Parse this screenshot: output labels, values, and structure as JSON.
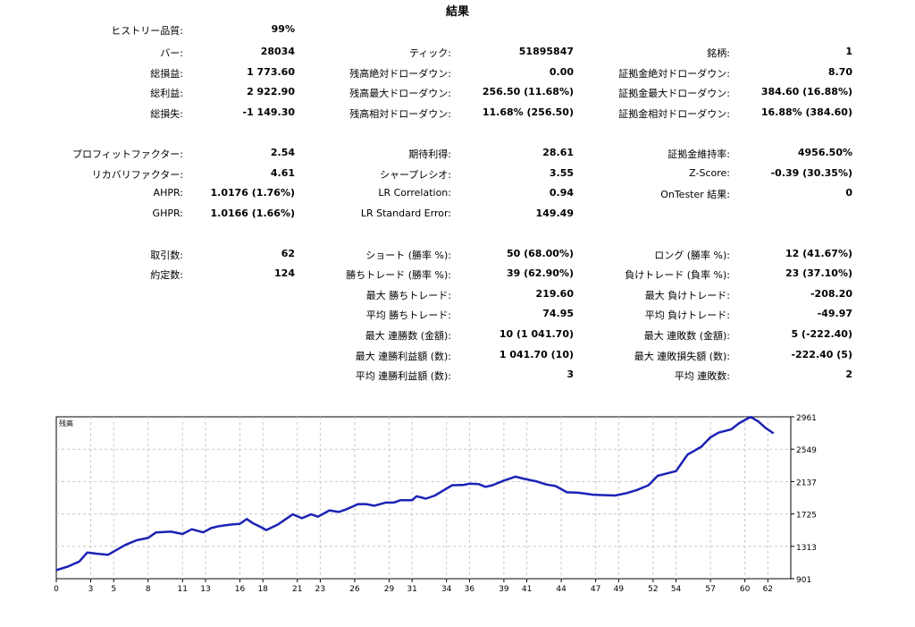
{
  "title": "結果",
  "rows": [
    {
      "cells": [
        {
          "label": "ヒストリー品質:",
          "value": "99%"
        },
        null,
        null
      ]
    },
    {
      "cells": [
        {
          "label": "バー:",
          "value": "28034"
        },
        {
          "label": "ティック:",
          "value": "51895847"
        },
        {
          "label": "銘柄:",
          "value": "1"
        }
      ]
    },
    {
      "cells": [
        {
          "label": "総損益:",
          "value": "1 773.60"
        },
        {
          "label": "残高絶対ドローダウン:",
          "value": "0.00"
        },
        {
          "label": "証拠金絶対ドローダウン:",
          "value": "8.70"
        }
      ]
    },
    {
      "cells": [
        {
          "label": "総利益:",
          "value": "2 922.90"
        },
        {
          "label": "残高最大ドローダウン:",
          "value": "256.50 (11.68%)"
        },
        {
          "label": "証拠金最大ドローダウン:",
          "value": "384.60 (16.88%)"
        }
      ]
    },
    {
      "cells": [
        {
          "label": "総損失:",
          "value": "-1 149.30"
        },
        {
          "label": "残高相対ドローダウン:",
          "value": "11.68% (256.50)"
        },
        {
          "label": "証拠金相対ドローダウン:",
          "value": "16.88% (384.60)"
        }
      ]
    },
    {
      "cells": [
        {
          "label": "プロフィットファクター:",
          "value": "2.54"
        },
        {
          "label": "期待利得:",
          "value": "28.61"
        },
        {
          "label": "証拠金維持率:",
          "value": "4956.50%"
        }
      ]
    },
    {
      "cells": [
        {
          "label": "リカバリファクター:",
          "value": "4.61"
        },
        {
          "label": "シャープレシオ:",
          "value": "3.55"
        },
        {
          "label": "Z-Score:",
          "value": "-0.39 (30.35%)"
        }
      ]
    },
    {
      "cells": [
        {
          "label": "AHPR:",
          "value": "1.0176 (1.76%)"
        },
        {
          "label": "LR Correlation:",
          "value": "0.94"
        },
        {
          "label": "OnTester 結果:",
          "value": "0"
        }
      ]
    },
    {
      "cells": [
        {
          "label": "GHPR:",
          "value": "1.0166 (1.66%)"
        },
        {
          "label": "LR Standard Error:",
          "value": "149.49"
        },
        null
      ]
    },
    {
      "cells": [
        {
          "label": "取引数:",
          "value": "62"
        },
        {
          "label": "ショート (勝率 %):",
          "value": "50 (68.00%)"
        },
        {
          "label": "ロング (勝率 %):",
          "value": "12 (41.67%)"
        }
      ]
    },
    {
      "cells": [
        {
          "label": "約定数:",
          "value": "124"
        },
        {
          "label": "勝ちトレード (勝率 %):",
          "value": "39 (62.90%)"
        },
        {
          "label": "負けトレード (負率 %):",
          "value": "23 (37.10%)"
        }
      ]
    },
    {
      "cells": [
        null,
        {
          "label": "最大 勝ちトレード:",
          "value": "219.60"
        },
        {
          "label": "最大 負けトレード:",
          "value": "-208.20"
        }
      ]
    },
    {
      "cells": [
        null,
        {
          "label": "平均 勝ちトレード:",
          "value": "74.95"
        },
        {
          "label": "平均 負けトレード:",
          "value": "-49.97"
        }
      ]
    },
    {
      "cells": [
        null,
        {
          "label": "最大 連勝数 (金額):",
          "value": "10 (1 041.70)"
        },
        {
          "label": "最大 連敗数 (金額):",
          "value": "5 (-222.40)"
        }
      ]
    },
    {
      "cells": [
        null,
        {
          "label": "最大 連勝利益額 (数):",
          "value": "1 041.70 (10)"
        },
        {
          "label": "最大 連敗損失額 (数):",
          "value": "-222.40 (5)"
        }
      ]
    },
    {
      "cells": [
        null,
        {
          "label": "平均 連勝利益額 (数):",
          "value": "3"
        },
        {
          "label": "平均 連敗数:",
          "value": "2"
        }
      ]
    }
  ],
  "chart_data": {
    "type": "line",
    "title": "残高",
    "xlabel": "",
    "ylabel": "",
    "xlim": [
      0,
      64
    ],
    "ylim": [
      901,
      2961
    ],
    "xticks": [
      "0",
      "3",
      "5",
      "8",
      "11",
      "13",
      "16",
      "18",
      "21",
      "23",
      "26",
      "29",
      "31",
      "34",
      "36",
      "39",
      "41",
      "44",
      "47",
      "49",
      "52",
      "54",
      "57",
      "60",
      "62"
    ],
    "yticks": [
      "2961",
      "2549",
      "2137",
      "1725",
      "1313",
      "901"
    ],
    "grid": true,
    "color": "#1c22b4",
    "series": [
      {
        "x": [
          0,
          1,
          2,
          2.7,
          3.5,
          4.5,
          5.4,
          6,
          7,
          8,
          8.7,
          10,
          11,
          11.8,
          12.8,
          13.5,
          14.2,
          15.2,
          16,
          16.6,
          17.1,
          17.8,
          18.3,
          19.3,
          20,
          20.6,
          21.4,
          22.2,
          22.8,
          23.8,
          24.6,
          25.2,
          26.3,
          27,
          27.7,
          28.7,
          29.4,
          30,
          31,
          31.4,
          32.2,
          33,
          33.8,
          34.5,
          35.5,
          36,
          36.8,
          37.4,
          38,
          39,
          40,
          40.7,
          41.8,
          42.7,
          43.5,
          44.5,
          45.5,
          46.8,
          47.5,
          48.7,
          49.7,
          50.6,
          51.6,
          52.4,
          53.2,
          54,
          55,
          56.2,
          57,
          57.7,
          58.8,
          59.5,
          60.5,
          61.2,
          61.8,
          62.5
        ],
        "y": [
          1010,
          1055,
          1120,
          1235,
          1220,
          1205,
          1280,
          1330,
          1390,
          1420,
          1490,
          1500,
          1470,
          1530,
          1490,
          1545,
          1570,
          1590,
          1600,
          1660,
          1610,
          1560,
          1520,
          1590,
          1660,
          1720,
          1670,
          1720,
          1690,
          1770,
          1750,
          1780,
          1850,
          1850,
          1830,
          1870,
          1870,
          1900,
          1900,
          1950,
          1920,
          1960,
          2030,
          2090,
          2095,
          2110,
          2105,
          2070,
          2090,
          2150,
          2200,
          2175,
          2140,
          2100,
          2080,
          2000,
          1995,
          1970,
          1965,
          1960,
          1990,
          2030,
          2090,
          2210,
          2240,
          2270,
          2480,
          2580,
          2700,
          2760,
          2800,
          2880,
          2960,
          2900,
          2820,
          2750
        ]
      }
    ]
  }
}
